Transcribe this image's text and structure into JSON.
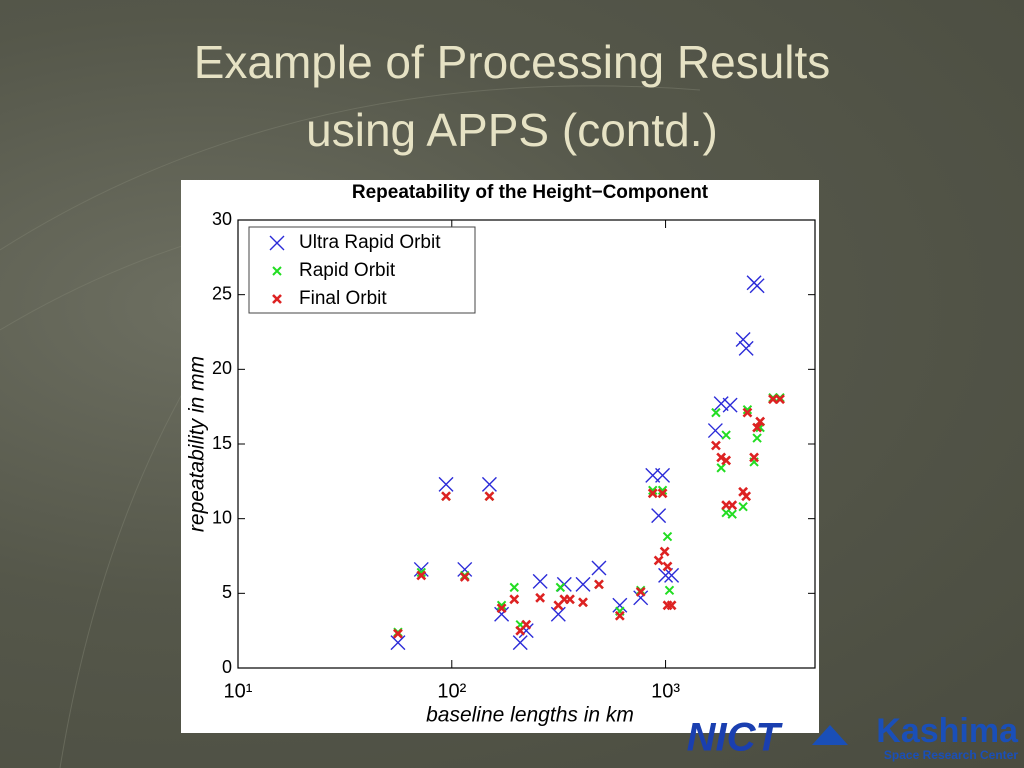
{
  "slide": {
    "title_lines": [
      "Example of Processing Results",
      "using APPS (contd.)"
    ],
    "logo_left": "NICT",
    "logo_right": "Kashima",
    "logo_right_sub": "Space Research Center"
  },
  "chart_data": {
    "type": "scatter",
    "title": "Repeatability of the Height−Component",
    "xlabel": "baseline lengths in km",
    "ylabel": "repeatability in mm",
    "xscale": "log",
    "xlim": [
      10,
      5000
    ],
    "ylim": [
      0,
      30
    ],
    "xticks": [
      {
        "value": 10,
        "label": "10¹"
      },
      {
        "value": 100,
        "label": "10²"
      },
      {
        "value": 1000,
        "label": "10³"
      }
    ],
    "yticks": [
      0,
      5,
      10,
      15,
      20,
      25,
      30
    ],
    "grid": false,
    "legend": "upper left",
    "series": [
      {
        "name": "Ultra Rapid Orbit",
        "color": "#2b2bd8",
        "x": [
          56,
          72,
          94,
          115,
          150,
          171,
          209,
          223,
          259,
          315,
          336,
          411,
          488,
          611,
          765,
          871,
          928,
          968,
          1000,
          1067,
          1710,
          1820,
          2004,
          2305,
          2382,
          2594,
          2680
        ],
        "values": [
          1.7,
          6.6,
          12.3,
          6.6,
          12.3,
          3.6,
          1.7,
          2.5,
          5.8,
          3.6,
          5.6,
          5.6,
          6.7,
          4.2,
          4.7,
          12.9,
          10.2,
          12.9,
          6.2,
          6.2,
          15.9,
          17.7,
          17.6,
          22.0,
          21.4,
          25.8,
          25.6
        ]
      },
      {
        "name": "Rapid Orbit",
        "color": "#22dd22",
        "x": [
          56,
          72,
          94,
          115,
          150,
          171,
          196,
          209,
          322,
          357,
          411,
          488,
          611,
          765,
          871,
          968,
          1021,
          1043,
          1720,
          1820,
          1920,
          1920,
          2050,
          2305,
          2415,
          2594,
          2680,
          2770,
          3180,
          3430
        ],
        "values": [
          2.4,
          6.4,
          11.5,
          6.2,
          11.5,
          4.2,
          5.4,
          2.9,
          5.4,
          4.6,
          4.4,
          5.6,
          3.8,
          5.2,
          11.9,
          11.9,
          8.8,
          5.2,
          17.1,
          13.4,
          15.6,
          10.4,
          10.3,
          10.8,
          17.3,
          13.8,
          15.4,
          16.1,
          18.1,
          18.1
        ]
      },
      {
        "name": "Final Orbit",
        "color": "#dd2222",
        "x": [
          56,
          72,
          94,
          115,
          150,
          171,
          196,
          209,
          223,
          259,
          315,
          336,
          357,
          411,
          488,
          611,
          765,
          871,
          928,
          968,
          990,
          1021,
          1021,
          1067,
          1720,
          1820,
          1920,
          1920,
          2050,
          2305,
          2382,
          2415,
          2594,
          2680,
          2770,
          3180,
          3430
        ],
        "values": [
          2.3,
          6.2,
          11.5,
          6.1,
          11.5,
          4.0,
          4.6,
          2.5,
          2.9,
          4.7,
          4.2,
          4.6,
          4.6,
          4.4,
          5.6,
          3.5,
          5.1,
          11.7,
          7.2,
          11.7,
          7.8,
          6.8,
          4.2,
          4.2,
          14.9,
          14.1,
          13.9,
          10.9,
          10.9,
          11.8,
          11.5,
          17.1,
          14.1,
          16.1,
          16.5,
          18.0,
          18.0
        ]
      }
    ]
  }
}
